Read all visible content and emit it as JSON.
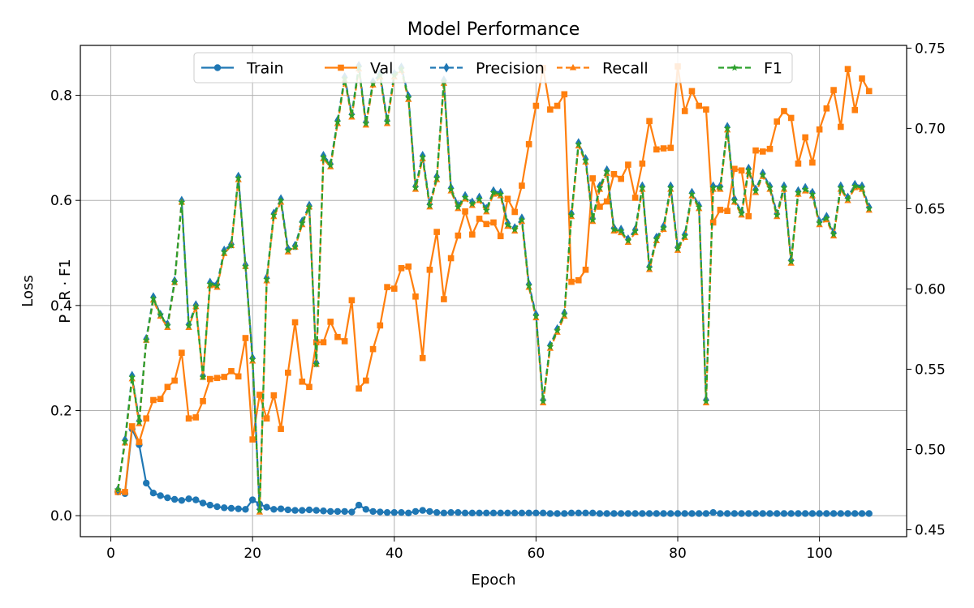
{
  "chart_data": {
    "type": "line",
    "title": "Model Performance",
    "xlabel": "Epoch",
    "ylabel_left": "Loss",
    "ylabel_right": "P · R · F1",
    "xlim": [
      -4.3,
      112.3
    ],
    "ylim_left": [
      -0.04,
      0.895
    ],
    "ylim_right": [
      0.4457,
      0.7517
    ],
    "x_ticks": [
      0,
      20,
      40,
      60,
      80,
      100
    ],
    "y_ticks_left": [
      0.0,
      0.2,
      0.4,
      0.6,
      0.8
    ],
    "y_ticks_right": [
      0.45,
      0.5,
      0.55,
      0.6,
      0.65,
      0.7,
      0.75
    ],
    "grid": true,
    "legend_position": "top-center",
    "legend_columns": 5,
    "colors": {
      "blue": "#1f77b4",
      "orange": "#ff7f0e",
      "green": "#2ca02c"
    },
    "x": [
      1,
      2,
      3,
      4,
      5,
      6,
      7,
      8,
      9,
      10,
      11,
      12,
      13,
      14,
      15,
      16,
      17,
      18,
      19,
      20,
      21,
      22,
      23,
      24,
      25,
      26,
      27,
      28,
      29,
      30,
      31,
      32,
      33,
      34,
      35,
      36,
      37,
      38,
      39,
      40,
      41,
      42,
      43,
      44,
      45,
      46,
      47,
      48,
      49,
      50,
      51,
      52,
      53,
      54,
      55,
      56,
      57,
      58,
      59,
      60,
      61,
      62,
      63,
      64,
      65,
      66,
      67,
      68,
      69,
      70,
      71,
      72,
      73,
      74,
      75,
      76,
      77,
      78,
      79,
      80,
      81,
      82,
      83,
      84,
      85,
      86,
      87,
      88,
      89,
      90,
      91,
      92,
      93,
      94,
      95,
      96,
      97,
      98,
      99,
      100,
      101,
      102,
      103,
      104,
      105,
      106,
      107
    ],
    "series": [
      {
        "name": "Train",
        "axis": "left",
        "color": "#1f77b4",
        "dash": false,
        "marker": "circle",
        "values": [
          0.045,
          0.042,
          0.165,
          0.135,
          0.062,
          0.043,
          0.038,
          0.034,
          0.031,
          0.029,
          0.032,
          0.03,
          0.024,
          0.02,
          0.017,
          0.015,
          0.014,
          0.013,
          0.012,
          0.03,
          0.022,
          0.016,
          0.012,
          0.013,
          0.011,
          0.01,
          0.01,
          0.011,
          0.01,
          0.009,
          0.008,
          0.008,
          0.008,
          0.007,
          0.02,
          0.012,
          0.008,
          0.007,
          0.006,
          0.006,
          0.006,
          0.005,
          0.008,
          0.01,
          0.008,
          0.006,
          0.005,
          0.006,
          0.006,
          0.005,
          0.005,
          0.005,
          0.005,
          0.005,
          0.005,
          0.005,
          0.005,
          0.005,
          0.005,
          0.005,
          0.005,
          0.004,
          0.004,
          0.004,
          0.005,
          0.005,
          0.005,
          0.005,
          0.004,
          0.004,
          0.004,
          0.004,
          0.004,
          0.004,
          0.004,
          0.004,
          0.004,
          0.004,
          0.004,
          0.004,
          0.004,
          0.004,
          0.004,
          0.004,
          0.006,
          0.004,
          0.004,
          0.004,
          0.004,
          0.004,
          0.004,
          0.004,
          0.004,
          0.004,
          0.004,
          0.004,
          0.004,
          0.004,
          0.004,
          0.004,
          0.004,
          0.004,
          0.004,
          0.004,
          0.004,
          0.004,
          0.004
        ]
      },
      {
        "name": "Val",
        "axis": "left",
        "color": "#ff7f0e",
        "dash": false,
        "marker": "square",
        "values": [
          0.045,
          0.045,
          0.17,
          0.14,
          0.185,
          0.22,
          0.222,
          0.245,
          0.257,
          0.31,
          0.185,
          0.187,
          0.218,
          0.26,
          0.262,
          0.264,
          0.275,
          0.265,
          0.338,
          0.145,
          0.23,
          0.185,
          0.229,
          0.165,
          0.272,
          0.368,
          0.255,
          0.245,
          0.33,
          0.33,
          0.369,
          0.34,
          0.332,
          0.41,
          0.242,
          0.257,
          0.317,
          0.362,
          0.435,
          0.432,
          0.471,
          0.474,
          0.417,
          0.3,
          0.468,
          0.54,
          0.412,
          0.49,
          0.533,
          0.579,
          0.535,
          0.565,
          0.555,
          0.558,
          0.532,
          0.603,
          0.578,
          0.628,
          0.707,
          0.78,
          0.852,
          0.773,
          0.78,
          0.802,
          0.445,
          0.448,
          0.468,
          0.642,
          0.588,
          0.598,
          0.65,
          0.641,
          0.668,
          0.605,
          0.67,
          0.751,
          0.697,
          0.699,
          0.7,
          0.855,
          0.77,
          0.808,
          0.78,
          0.773,
          0.558,
          0.582,
          0.58,
          0.66,
          0.657,
          0.57,
          0.695,
          0.693,
          0.698,
          0.75,
          0.77,
          0.757,
          0.67,
          0.72,
          0.672,
          0.735,
          0.775,
          0.81,
          0.74,
          0.85,
          0.772,
          0.832,
          0.808
        ]
      },
      {
        "name": "Precision",
        "axis": "right",
        "color": "#1f77b4",
        "dash": true,
        "marker": "diamond",
        "values": [
          0.475,
          0.506,
          0.546,
          0.518,
          0.569,
          0.595,
          0.584,
          0.578,
          0.605,
          0.655,
          0.578,
          0.59,
          0.546,
          0.604,
          0.603,
          0.624,
          0.628,
          0.67,
          0.615,
          0.557,
          0.463,
          0.607,
          0.647,
          0.656,
          0.625,
          0.627,
          0.642,
          0.652,
          0.554,
          0.683,
          0.678,
          0.705,
          0.732,
          0.709,
          0.739,
          0.704,
          0.729,
          0.734,
          0.705,
          0.734,
          0.738,
          0.72,
          0.664,
          0.683,
          0.653,
          0.67,
          0.73,
          0.663,
          0.652,
          0.658,
          0.654,
          0.657,
          0.65,
          0.661,
          0.66,
          0.641,
          0.638,
          0.644,
          0.603,
          0.584,
          0.531,
          0.565,
          0.575,
          0.585,
          0.647,
          0.691,
          0.681,
          0.644,
          0.664,
          0.674,
          0.638,
          0.637,
          0.631,
          0.637,
          0.664,
          0.614,
          0.632,
          0.639,
          0.664,
          0.626,
          0.634,
          0.66,
          0.652,
          0.531,
          0.664,
          0.664,
          0.701,
          0.656,
          0.648,
          0.675,
          0.662,
          0.672,
          0.664,
          0.647,
          0.664,
          0.618,
          0.661,
          0.663,
          0.66,
          0.642,
          0.645,
          0.635,
          0.664,
          0.657,
          0.665,
          0.664,
          0.651
        ]
      },
      {
        "name": "Recall",
        "axis": "right",
        "color": "#ff7f0e",
        "dash": true,
        "marker": "triangle",
        "values": [
          0.475,
          0.504,
          0.544,
          0.516,
          0.568,
          0.593,
          0.583,
          0.576,
          0.604,
          0.654,
          0.576,
          0.589,
          0.545,
          0.602,
          0.601,
          0.622,
          0.627,
          0.668,
          0.614,
          0.555,
          0.461,
          0.605,
          0.645,
          0.654,
          0.623,
          0.626,
          0.64,
          0.651,
          0.553,
          0.681,
          0.676,
          0.703,
          0.73,
          0.707,
          0.737,
          0.702,
          0.727,
          0.732,
          0.703,
          0.732,
          0.736,
          0.718,
          0.662,
          0.681,
          0.651,
          0.668,
          0.728,
          0.661,
          0.65,
          0.656,
          0.652,
          0.655,
          0.648,
          0.659,
          0.658,
          0.639,
          0.636,
          0.642,
          0.601,
          0.582,
          0.529,
          0.563,
          0.573,
          0.583,
          0.645,
          0.689,
          0.679,
          0.642,
          0.662,
          0.672,
          0.636,
          0.635,
          0.629,
          0.635,
          0.662,
          0.612,
          0.63,
          0.637,
          0.662,
          0.624,
          0.632,
          0.658,
          0.65,
          0.529,
          0.662,
          0.662,
          0.699,
          0.654,
          0.646,
          0.673,
          0.66,
          0.67,
          0.662,
          0.645,
          0.662,
          0.616,
          0.659,
          0.661,
          0.658,
          0.64,
          0.643,
          0.633,
          0.662,
          0.655,
          0.663,
          0.662,
          0.649
        ]
      },
      {
        "name": "F1",
        "axis": "right",
        "color": "#2ca02c",
        "dash": true,
        "marker": "star",
        "values": [
          0.475,
          0.505,
          0.545,
          0.517,
          0.568,
          0.594,
          0.584,
          0.577,
          0.604,
          0.654,
          0.577,
          0.589,
          0.545,
          0.603,
          0.602,
          0.623,
          0.627,
          0.669,
          0.614,
          0.556,
          0.462,
          0.606,
          0.646,
          0.655,
          0.624,
          0.626,
          0.641,
          0.651,
          0.553,
          0.682,
          0.677,
          0.704,
          0.731,
          0.708,
          0.738,
          0.703,
          0.728,
          0.733,
          0.704,
          0.733,
          0.737,
          0.719,
          0.663,
          0.682,
          0.652,
          0.669,
          0.729,
          0.662,
          0.651,
          0.657,
          0.653,
          0.656,
          0.649,
          0.66,
          0.659,
          0.64,
          0.637,
          0.643,
          0.602,
          0.583,
          0.53,
          0.564,
          0.574,
          0.584,
          0.646,
          0.69,
          0.68,
          0.643,
          0.663,
          0.673,
          0.637,
          0.636,
          0.63,
          0.636,
          0.663,
          0.613,
          0.631,
          0.638,
          0.663,
          0.625,
          0.633,
          0.659,
          0.651,
          0.53,
          0.663,
          0.663,
          0.7,
          0.655,
          0.647,
          0.674,
          0.661,
          0.671,
          0.663,
          0.646,
          0.663,
          0.617,
          0.66,
          0.662,
          0.659,
          0.641,
          0.644,
          0.634,
          0.663,
          0.656,
          0.664,
          0.663,
          0.65
        ]
      }
    ]
  }
}
